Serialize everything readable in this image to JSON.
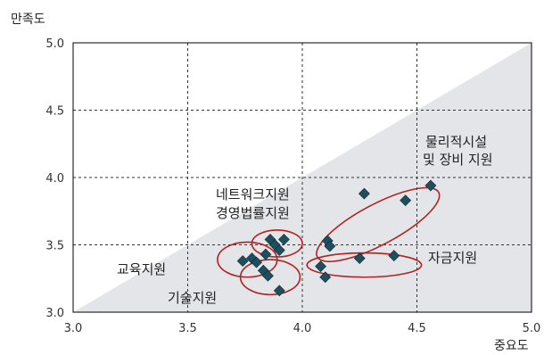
{
  "chart_data": {
    "type": "scatter",
    "title": "",
    "xlabel": "중요도",
    "ylabel": "만족도",
    "xlim": [
      3.0,
      5.0
    ],
    "ylim": [
      3.0,
      5.0
    ],
    "x_ticks": [
      "3.0",
      "3.5",
      "4.0",
      "4.5",
      "5.0"
    ],
    "y_ticks": [
      "3.0",
      "3.5",
      "4.0",
      "4.5",
      "5.0"
    ],
    "grid": "dashed",
    "reference_line": "y = x (shaded region below)",
    "colors": {
      "marker": "#1F4F5E",
      "ellipse": "#B22222",
      "shade": "#E3E5E8"
    },
    "points": [
      {
        "x": 3.74,
        "y": 3.38
      },
      {
        "x": 3.78,
        "y": 3.4
      },
      {
        "x": 3.8,
        "y": 3.37
      },
      {
        "x": 3.83,
        "y": 3.31
      },
      {
        "x": 3.85,
        "y": 3.27
      },
      {
        "x": 3.9,
        "y": 3.16
      },
      {
        "x": 3.84,
        "y": 3.43
      },
      {
        "x": 3.86,
        "y": 3.54
      },
      {
        "x": 3.88,
        "y": 3.5
      },
      {
        "x": 3.9,
        "y": 3.46
      },
      {
        "x": 3.92,
        "y": 3.54
      },
      {
        "x": 4.08,
        "y": 3.34
      },
      {
        "x": 4.1,
        "y": 3.26
      },
      {
        "x": 4.11,
        "y": 3.53
      },
      {
        "x": 4.12,
        "y": 3.49
      },
      {
        "x": 4.25,
        "y": 3.4
      },
      {
        "x": 4.27,
        "y": 3.88
      },
      {
        "x": 4.4,
        "y": 3.42
      },
      {
        "x": 4.45,
        "y": 3.83
      },
      {
        "x": 4.56,
        "y": 3.94
      }
    ],
    "groups": [
      {
        "label": "교육지원",
        "center": [
          3.76,
          3.39
        ],
        "rx": 0.13,
        "ry": 0.13
      },
      {
        "label": "기술지원",
        "center": [
          3.86,
          3.26
        ],
        "rx": 0.13,
        "ry": 0.13
      },
      {
        "label": "네트워크지원\n경영법률지원",
        "center": [
          3.89,
          3.51
        ],
        "rx": 0.11,
        "ry": 0.1
      },
      {
        "label": "물리적시설\n및 장비 지원",
        "center": [
          4.33,
          3.65
        ],
        "rx": 0.3,
        "ry": 0.15
      },
      {
        "label": "자금지원",
        "center": [
          4.27,
          3.35
        ],
        "rx": 0.25,
        "ry": 0.09
      }
    ],
    "annotations": [
      {
        "lines": [
          "물리적시설",
          "및 장비 지원"
        ]
      },
      {
        "lines": [
          "네트워크지원",
          "경영법률지원"
        ]
      },
      {
        "lines": [
          "교육지원"
        ]
      },
      {
        "lines": [
          "기술지원"
        ]
      },
      {
        "lines": [
          "자금지원"
        ]
      }
    ]
  }
}
